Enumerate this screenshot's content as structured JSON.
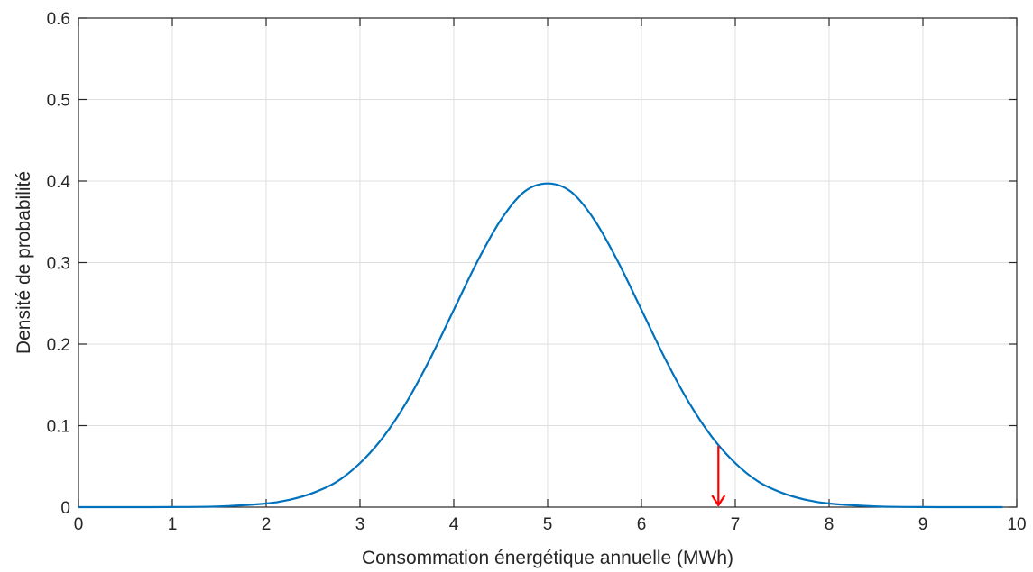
{
  "chart_data": {
    "type": "line",
    "xlabel": "Consommation énergétique annuelle (MWh)",
    "ylabel": "Densité de probabilité",
    "xlim": [
      0,
      10
    ],
    "ylim": [
      0,
      0.6
    ],
    "xticks": [
      "0",
      "1",
      "2",
      "3",
      "4",
      "5",
      "6",
      "7",
      "8",
      "9",
      "10"
    ],
    "yticks": [
      "0",
      "0.1",
      "0.2",
      "0.3",
      "0.4",
      "0.5",
      "0.6"
    ],
    "grid": true,
    "series": [
      {
        "color": "#0072bd",
        "x": [
          0,
          0.5,
          1,
          1.5,
          2,
          2.25,
          2.5,
          2.75,
          3,
          3.25,
          3.5,
          3.75,
          4,
          4.25,
          4.5,
          4.75,
          5,
          5.25,
          5.5,
          5.75,
          6,
          6.25,
          6.5,
          6.75,
          7,
          7.25,
          7.5,
          7.75,
          8,
          8.5,
          9,
          9.5,
          9.85
        ],
        "y": [
          0,
          0,
          0.0001,
          0.0009,
          0.0044,
          0.0091,
          0.0175,
          0.031,
          0.054,
          0.0863,
          0.1295,
          0.1826,
          0.242,
          0.3011,
          0.3521,
          0.3867,
          0.397,
          0.3867,
          0.3521,
          0.3011,
          0.242,
          0.1826,
          0.1295,
          0.0863,
          0.054,
          0.031,
          0.0175,
          0.0091,
          0.0044,
          0.0009,
          0.0001,
          0,
          0
        ]
      }
    ],
    "annotations": [
      {
        "type": "arrow",
        "color": "#ff0000",
        "x": 6.82,
        "y_from": 0.075,
        "y_to": 0.0
      }
    ]
  }
}
